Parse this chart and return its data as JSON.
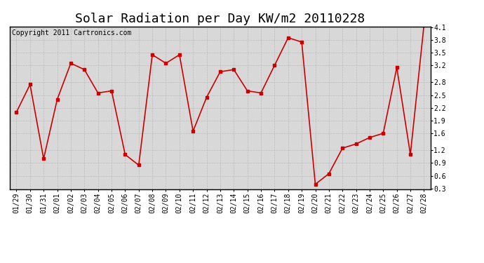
{
  "title": "Solar Radiation per Day KW/m2 20110228",
  "copyright": "Copyright 2011 Cartronics.com",
  "dates": [
    "01/29",
    "01/30",
    "01/31",
    "02/01",
    "02/02",
    "02/03",
    "02/04",
    "02/05",
    "02/06",
    "02/07",
    "02/08",
    "02/09",
    "02/10",
    "02/11",
    "02/12",
    "02/13",
    "02/14",
    "02/15",
    "02/16",
    "02/17",
    "02/18",
    "02/19",
    "02/20",
    "02/21",
    "02/22",
    "02/23",
    "02/24",
    "02/25",
    "02/26",
    "02/27",
    "02/28"
  ],
  "values": [
    2.1,
    2.75,
    1.0,
    2.4,
    3.25,
    3.1,
    2.55,
    2.6,
    1.1,
    0.85,
    3.45,
    3.25,
    3.45,
    1.65,
    2.45,
    3.05,
    3.1,
    2.6,
    2.55,
    3.2,
    3.85,
    3.75,
    0.4,
    0.65,
    1.25,
    1.35,
    1.5,
    1.6,
    3.15,
    1.1,
    4.15
  ],
  "line_color": "#cc0000",
  "marker": "s",
  "marker_size": 3,
  "bg_color": "#ffffff",
  "grid_color": "#bbbbbb",
  "ylim": [
    0.3,
    4.1
  ],
  "yticks": [
    0.3,
    0.6,
    0.9,
    1.2,
    1.6,
    1.9,
    2.2,
    2.5,
    2.8,
    3.2,
    3.5,
    3.8,
    4.1
  ],
  "title_fontsize": 13,
  "copyright_fontsize": 7,
  "tick_fontsize": 7,
  "axis_bg": "#d8d8d8",
  "linewidth": 1.2
}
